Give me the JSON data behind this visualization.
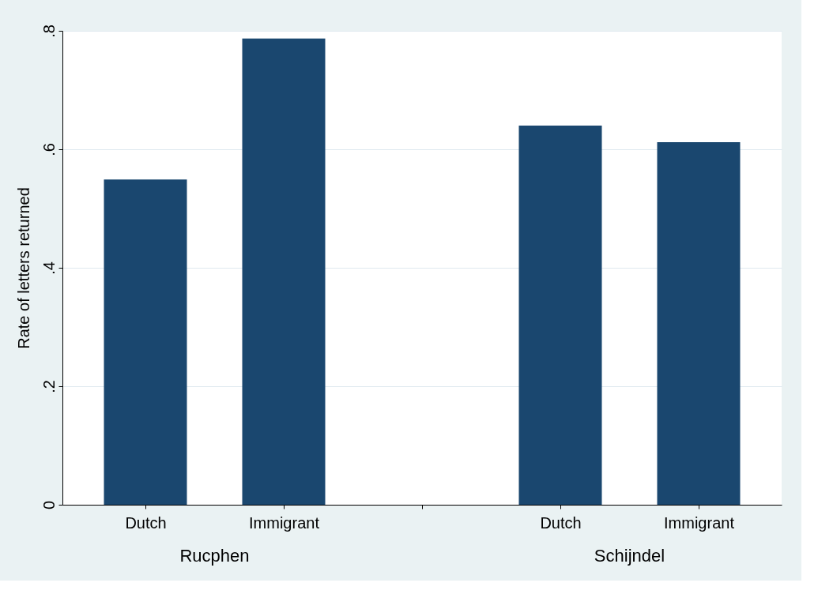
{
  "chart_data": {
    "type": "bar",
    "ylabel": "Rate of letters returned",
    "categories": [
      "Dutch",
      "Immigrant",
      null,
      "Dutch",
      "Immigrant"
    ],
    "values": [
      0.549,
      0.787,
      null,
      0.64,
      0.612
    ],
    "color": "#1a476f",
    "ylim": [
      0,
      0.8
    ],
    "yticks": [
      {
        "value": 0,
        "label": "0"
      },
      {
        "value": 0.2,
        "label": ".2"
      },
      {
        "value": 0.4,
        "label": ".4"
      },
      {
        "value": 0.6,
        "label": ".6"
      },
      {
        "value": 0.8,
        "label": ".8"
      }
    ],
    "grid": "y",
    "annotations": [
      "Rucphen",
      "Schijndel"
    ]
  }
}
